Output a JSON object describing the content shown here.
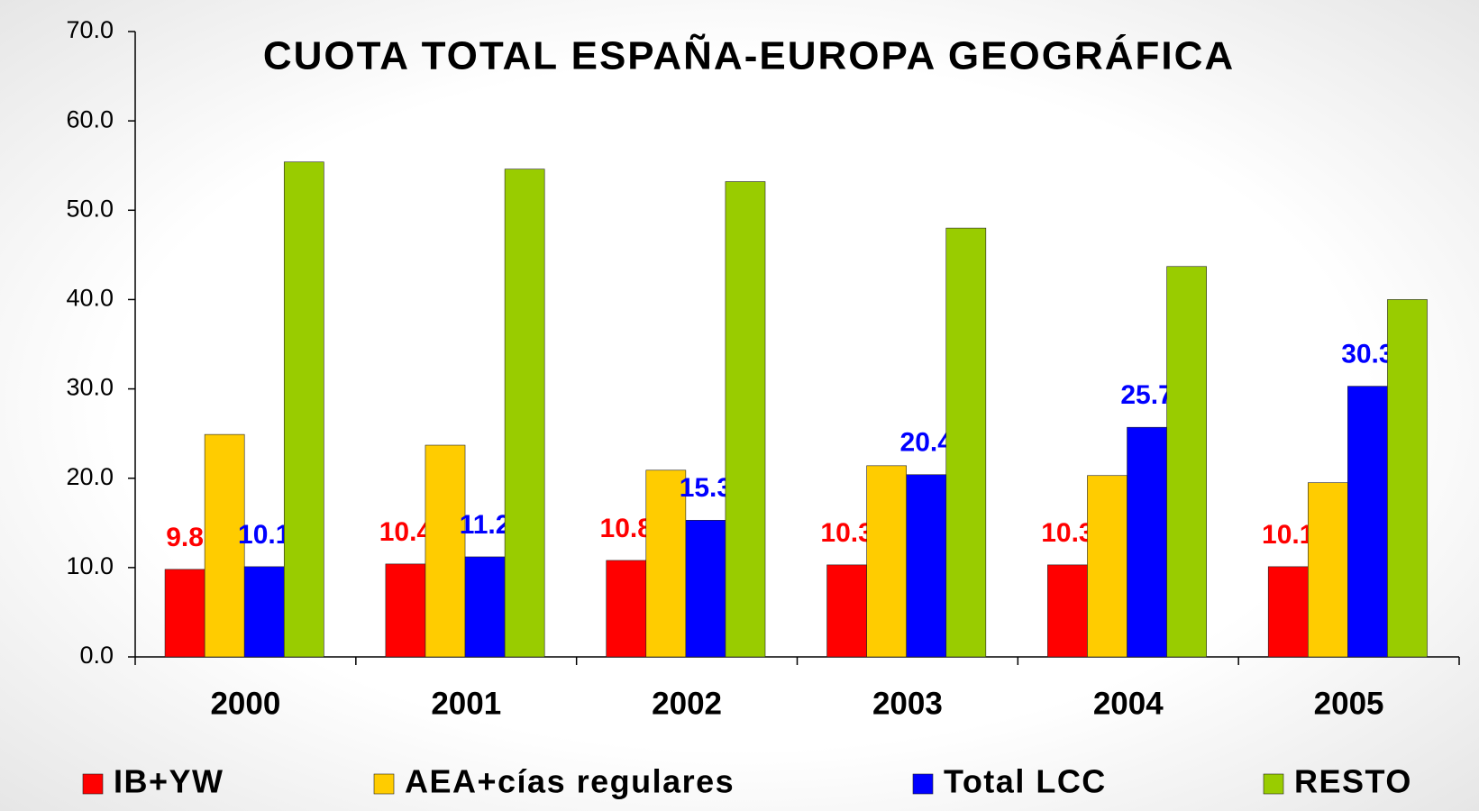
{
  "chart_data": {
    "type": "bar",
    "title": "CUOTA TOTAL ESPAÑA-EUROPA GEOGRÁFICA",
    "categories": [
      "2000",
      "2001",
      "2002",
      "2003",
      "2004",
      "2005"
    ],
    "series": [
      {
        "name": "IB+YW",
        "color": "#ff0000",
        "show_labels": true,
        "values": [
          9.8,
          10.4,
          10.8,
          10.3,
          10.3,
          10.1
        ]
      },
      {
        "name": "AEA+cías regulares",
        "color": "#ffcc00",
        "show_labels": false,
        "values": [
          24.9,
          23.7,
          20.9,
          21.4,
          20.3,
          19.5
        ]
      },
      {
        "name": "Total LCC",
        "color": "#0000ff",
        "show_labels": true,
        "values": [
          10.1,
          11.2,
          15.3,
          20.4,
          25.7,
          30.3
        ]
      },
      {
        "name": "RESTO",
        "color": "#99cc00",
        "show_labels": false,
        "values": [
          55.4,
          54.6,
          53.2,
          48.0,
          43.7,
          40.0
        ]
      }
    ],
    "ylim": [
      0,
      70
    ],
    "yticks": [
      {
        "value": 0,
        "label": "0.0"
      },
      {
        "value": 10,
        "label": "10.0"
      },
      {
        "value": 20,
        "label": "20.0"
      },
      {
        "value": 30,
        "label": "30.0"
      },
      {
        "value": 40,
        "label": "40.0"
      },
      {
        "value": 50,
        "label": "50.0"
      },
      {
        "value": 60,
        "label": "60.0"
      },
      {
        "value": 70,
        "label": "70.0"
      }
    ],
    "legend": "bottom"
  }
}
